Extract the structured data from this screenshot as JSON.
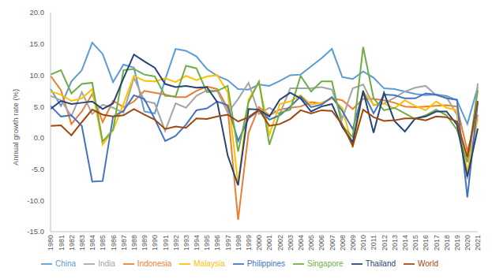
{
  "chart_data": {
    "type": "line",
    "y_label": "Annual growth rate (%)",
    "categories": [
      "1980",
      "1981",
      "1982",
      "1983",
      "1984",
      "1985",
      "1986",
      "1987",
      "1988",
      "1989",
      "1990",
      "1991",
      "1992",
      "1993",
      "1994",
      "1995",
      "1996",
      "1997",
      "1998",
      "1999",
      "2000",
      "2001",
      "2002",
      "2003",
      "2004",
      "2005",
      "2006",
      "2007",
      "2008",
      "2009",
      "2010",
      "2011",
      "2012",
      "2013",
      "2014",
      "2015",
      "2016",
      "2017",
      "2018",
      "2019",
      "2020",
      "2021"
    ],
    "ylim": [
      -15,
      20
    ],
    "yticks": [
      {
        "value": -15,
        "label": "-15.0"
      },
      {
        "value": -10,
        "label": "-10.0"
      },
      {
        "value": -5,
        "label": "-5.0"
      },
      {
        "value": 0,
        "label": "0.0"
      },
      {
        "value": 5,
        "label": "5.0"
      },
      {
        "value": 10,
        "label": "10.0"
      },
      {
        "value": 15,
        "label": "15.0"
      },
      {
        "value": 20,
        "label": "20.0"
      }
    ],
    "grid": false,
    "legend": "bottom",
    "series": [
      {
        "name": "China",
        "color": "#5B9BD5",
        "values": [
          7.8,
          5.1,
          9.0,
          10.8,
          15.2,
          13.4,
          8.9,
          11.7,
          11.2,
          4.2,
          3.9,
          9.3,
          14.2,
          13.9,
          13.0,
          11.0,
          9.9,
          9.2,
          7.8,
          7.7,
          8.5,
          8.3,
          9.1,
          10.0,
          10.1,
          11.4,
          12.7,
          14.2,
          9.7,
          9.4,
          10.6,
          9.6,
          7.9,
          7.8,
          7.4,
          7.0,
          6.8,
          6.9,
          6.7,
          6.0,
          2.2,
          8.1
        ]
      },
      {
        "name": "Indonesia",
        "color": "#ED7D31",
        "values": [
          9.9,
          7.6,
          2.2,
          4.2,
          7.0,
          2.5,
          5.9,
          4.9,
          5.8,
          7.5,
          7.2,
          6.9,
          6.5,
          6.5,
          7.5,
          8.2,
          7.8,
          4.7,
          -13.1,
          0.8,
          4.9,
          3.6,
          4.5,
          4.8,
          5.0,
          5.7,
          5.5,
          6.3,
          6.0,
          4.6,
          6.2,
          6.2,
          6.0,
          5.6,
          5.0,
          4.9,
          5.0,
          5.1,
          5.2,
          5.0,
          -2.1,
          3.7
        ]
      },
      {
        "name": "India",
        "color": "#A5A5A5",
        "values": [
          6.7,
          6.0,
          3.5,
          7.3,
          3.8,
          5.3,
          4.8,
          4.0,
          9.6,
          5.9,
          5.5,
          1.1,
          5.5,
          4.8,
          6.7,
          7.6,
          7.5,
          4.0,
          6.2,
          8.8,
          3.8,
          4.8,
          3.8,
          7.9,
          7.9,
          7.9,
          8.1,
          7.7,
          3.1,
          7.9,
          8.5,
          5.2,
          5.5,
          6.4,
          7.4,
          8.0,
          8.3,
          6.8,
          6.5,
          3.7,
          -6.6,
          8.7
        ]
      },
      {
        "name": "Malaysia",
        "color": "#FFC000",
        "values": [
          7.4,
          6.9,
          5.9,
          6.3,
          7.8,
          -1.1,
          1.2,
          5.4,
          9.9,
          9.1,
          9.0,
          9.5,
          8.9,
          9.9,
          9.2,
          9.8,
          10.0,
          7.3,
          -7.4,
          6.1,
          8.9,
          0.5,
          5.4,
          5.8,
          6.8,
          5.3,
          5.6,
          6.3,
          4.8,
          -1.5,
          7.4,
          5.3,
          5.5,
          4.7,
          6.0,
          5.1,
          4.4,
          5.8,
          4.8,
          4.4,
          -5.5,
          3.1
        ]
      },
      {
        "name": "Philippines",
        "color": "#4472C4",
        "values": [
          5.1,
          3.4,
          3.6,
          1.9,
          -7.0,
          -6.9,
          3.4,
          4.3,
          6.8,
          6.2,
          3.0,
          -0.5,
          0.3,
          2.1,
          4.4,
          4.7,
          5.8,
          5.2,
          -0.5,
          3.1,
          4.4,
          2.9,
          3.6,
          5.0,
          6.6,
          4.9,
          5.3,
          6.5,
          4.3,
          1.4,
          7.3,
          3.9,
          6.9,
          6.8,
          6.3,
          6.3,
          7.1,
          6.9,
          6.3,
          6.1,
          -9.5,
          5.7
        ]
      },
      {
        "name": "Singapore",
        "color": "#70AD47",
        "values": [
          10.1,
          10.8,
          7.1,
          8.6,
          8.8,
          -0.6,
          1.3,
          10.8,
          11.0,
          10.1,
          9.8,
          6.7,
          6.6,
          11.5,
          11.1,
          7.3,
          7.5,
          8.3,
          -2.2,
          5.7,
          9.0,
          -1.1,
          4.0,
          4.5,
          9.9,
          7.4,
          9.0,
          9.0,
          1.9,
          0.1,
          14.5,
          6.3,
          4.4,
          4.8,
          3.9,
          3.0,
          3.6,
          4.5,
          3.6,
          1.3,
          -3.9,
          7.6
        ]
      },
      {
        "name": "Thailand",
        "color": "#264478",
        "values": [
          4.6,
          5.9,
          5.4,
          5.6,
          5.8,
          4.6,
          5.5,
          9.5,
          13.3,
          12.2,
          11.2,
          8.6,
          8.1,
          8.3,
          8.0,
          8.1,
          5.7,
          -2.8,
          -7.6,
          4.6,
          4.5,
          3.4,
          6.1,
          7.2,
          6.3,
          4.2,
          5.0,
          5.4,
          1.7,
          -0.7,
          7.5,
          0.8,
          7.2,
          2.7,
          1.0,
          3.1,
          3.4,
          4.2,
          4.2,
          2.1,
          -6.2,
          1.5
        ]
      },
      {
        "name": "World",
        "color": "#9E480E",
        "values": [
          1.9,
          2.0,
          0.4,
          2.5,
          4.5,
          3.7,
          3.4,
          3.6,
          4.6,
          3.7,
          2.9,
          1.4,
          1.8,
          1.6,
          3.1,
          3.0,
          3.4,
          3.7,
          2.6,
          3.3,
          4.5,
          1.9,
          2.2,
          3.0,
          4.4,
          3.9,
          4.4,
          4.3,
          2.1,
          -1.3,
          4.5,
          3.3,
          2.7,
          2.8,
          3.1,
          3.1,
          2.8,
          3.4,
          3.3,
          2.6,
          -3.1,
          5.9
        ]
      }
    ]
  }
}
